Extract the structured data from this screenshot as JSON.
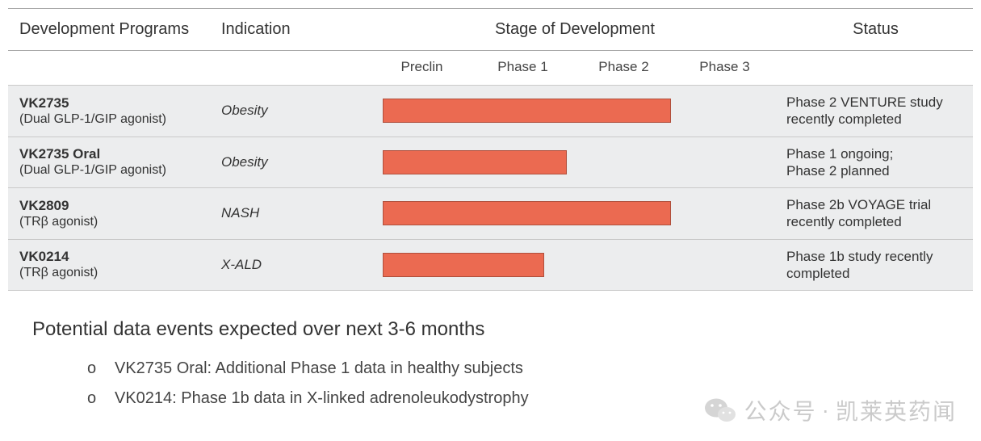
{
  "headers": {
    "programs": "Development Programs",
    "indication": "Indication",
    "stage": "Stage of Development",
    "status": "Status"
  },
  "phases": [
    "Preclin",
    "Phase 1",
    "Phase 2",
    "Phase 3"
  ],
  "bar_color": "#eb6a51",
  "row_bg_color": "#ecedee",
  "rows": [
    {
      "name": "VK2735",
      "sub": "(Dual GLP-1/GIP agonist)",
      "indication": "Obesity",
      "progress_pct": 75,
      "status_l1": "Phase 2 VENTURE study",
      "status_l2": "recently completed"
    },
    {
      "name": "VK2735 Oral",
      "sub": "(Dual GLP-1/GIP agonist)",
      "indication": "Obesity",
      "progress_pct": 48,
      "status_l1": "Phase 1 ongoing;",
      "status_l2": "Phase 2 planned"
    },
    {
      "name": "VK2809",
      "sub": "(TRβ agonist)",
      "indication": "NASH",
      "progress_pct": 75,
      "status_l1": "Phase 2b VOYAGE trial",
      "status_l2": "recently completed"
    },
    {
      "name": "VK0214",
      "sub": "(TRβ agonist)",
      "indication": "X-ALD",
      "progress_pct": 42,
      "status_l1": "Phase 1b study recently",
      "status_l2": "completed"
    }
  ],
  "footer": {
    "title": "Potential data events expected over next 3-6 months",
    "items": [
      "VK2735 Oral: Additional Phase 1 data in healthy subjects",
      "VK0214: Phase 1b data in X-linked adrenoleukodystrophy"
    ]
  },
  "watermark": {
    "label": "公众号",
    "sep": "·",
    "name": "凯莱英药闻"
  }
}
